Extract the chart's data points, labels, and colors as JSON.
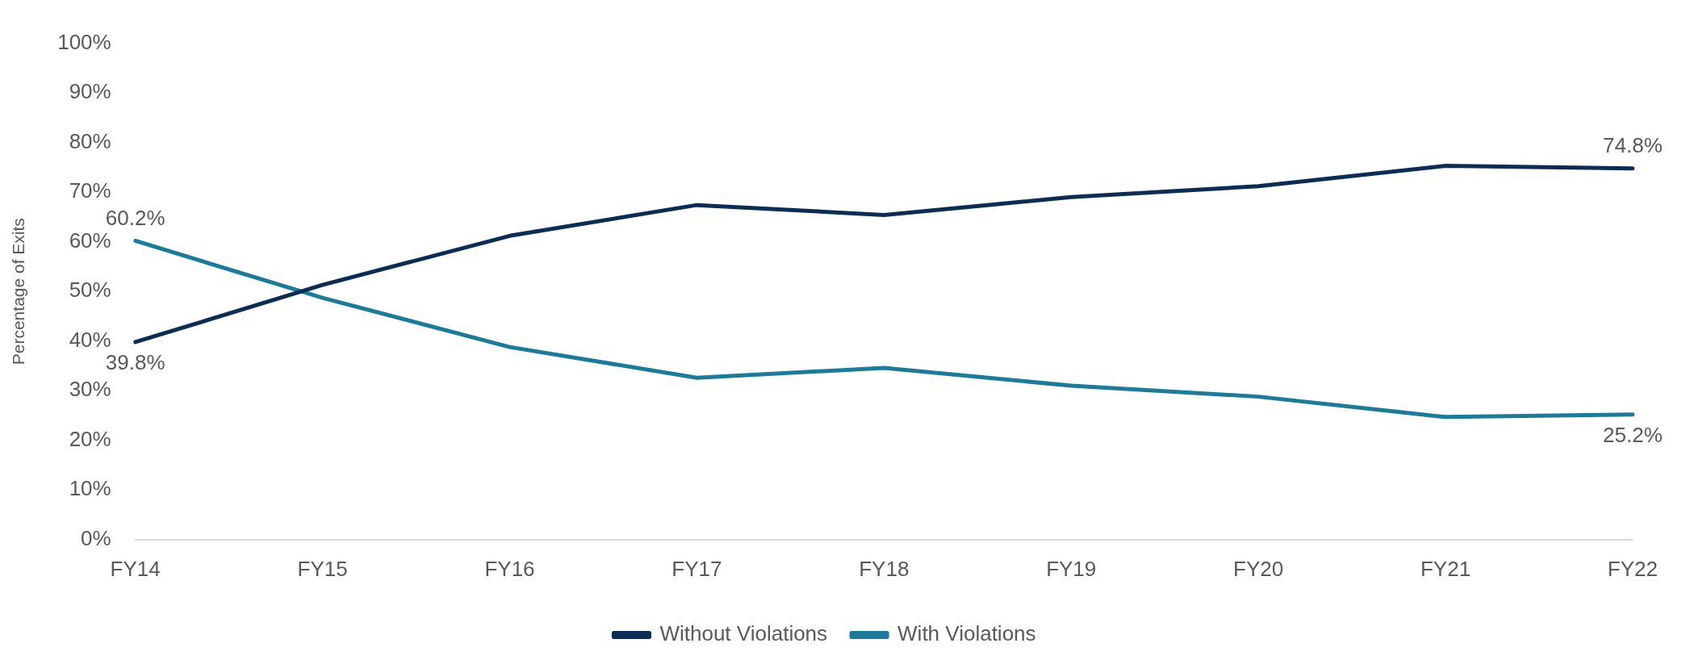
{
  "chart_data": {
    "type": "line",
    "ylabel": "Percentage of Exits",
    "categories": [
      "FY14",
      "FY15",
      "FY16",
      "FY17",
      "FY18",
      "FY19",
      "FY20",
      "FY21",
      "FY22"
    ],
    "series": [
      {
        "name": "Without Violations",
        "color": "#0b2d55",
        "values": [
          39.8,
          51.3,
          61.2,
          67.4,
          65.4,
          69.0,
          71.2,
          75.3,
          74.8
        ],
        "value_labels": [
          "39.8%",
          null,
          null,
          null,
          null,
          null,
          null,
          null,
          "74.8%"
        ]
      },
      {
        "name": "With Violations",
        "color": "#1a7b9b",
        "values": [
          60.2,
          48.7,
          38.8,
          32.6,
          34.6,
          31.0,
          28.8,
          24.7,
          25.2
        ],
        "value_labels": [
          "60.2%",
          null,
          null,
          null,
          null,
          null,
          null,
          null,
          "25.2%"
        ]
      }
    ],
    "ylim": [
      0,
      100
    ],
    "yticks": [
      {
        "value": 0,
        "label": "0%"
      },
      {
        "value": 10,
        "label": "10%"
      },
      {
        "value": 20,
        "label": "20%"
      },
      {
        "value": 30,
        "label": "30%"
      },
      {
        "value": 40,
        "label": "40%"
      },
      {
        "value": 50,
        "label": "50%"
      },
      {
        "value": 60,
        "label": "60%"
      },
      {
        "value": 70,
        "label": "70%"
      },
      {
        "value": 80,
        "label": "80%"
      },
      {
        "value": 90,
        "label": "90%"
      },
      {
        "value": 100,
        "label": "100%"
      }
    ],
    "grid": false,
    "legend": "bottom",
    "marker": "none",
    "line_style": "solid"
  }
}
